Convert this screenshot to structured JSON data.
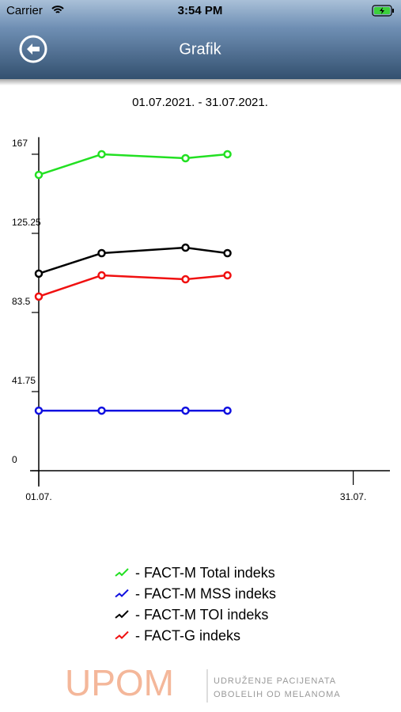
{
  "status_bar": {
    "carrier": "Carrier",
    "time": "3:54 PM"
  },
  "header": {
    "title": "Grafik"
  },
  "chart_data": {
    "type": "line",
    "subtitle": "01.07.2021. - 31.07.2021.",
    "x": [
      1,
      7,
      15,
      19
    ],
    "xlim": [
      1,
      34.5
    ],
    "xticks": [
      {
        "value": 1,
        "label": "01.07."
      },
      {
        "value": 31,
        "label": "31.07."
      }
    ],
    "ylim": [
      0,
      176
    ],
    "yticks": [
      0,
      41.75,
      83.5,
      125.25,
      167
    ],
    "series": [
      {
        "name": "- FACT-M Total indeks",
        "color": "#22e022",
        "values": [
          156.1,
          167,
          164.9,
          167
        ]
      },
      {
        "name": "- FACT-M MSS indeks",
        "color": "#1010e0",
        "values": [
          31.7,
          31.7,
          31.7,
          31.7
        ]
      },
      {
        "name": "- FACT-M TOI indeks",
        "color": "#000000",
        "values": [
          104,
          114.8,
          117.7,
          114.8
        ]
      },
      {
        "name": "- FACT-G indeks",
        "color": "#f01010",
        "values": [
          91.9,
          103.1,
          101,
          103.1
        ]
      }
    ]
  },
  "logo": {
    "name": "UPOM",
    "line1": "UDRUŽENJE PACIJENATA",
    "line2": "OBOLELIH OD MELANOMA"
  }
}
